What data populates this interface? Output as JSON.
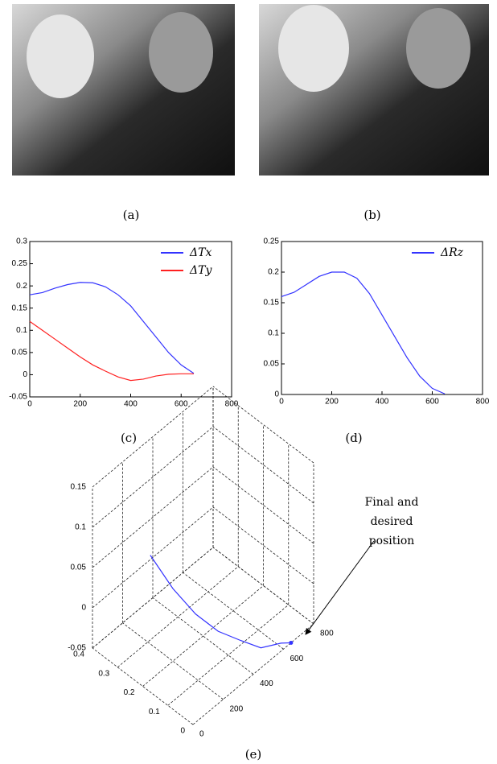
{
  "images": [
    {
      "caption": "(a)"
    },
    {
      "caption": "(b)"
    }
  ],
  "chart_data": [
    {
      "type": "line",
      "caption": "(c)",
      "x": [
        0,
        50,
        100,
        150,
        200,
        250,
        300,
        350,
        400,
        450,
        500,
        550,
        600,
        650
      ],
      "series": [
        {
          "name": "ΔTx",
          "color": "#3333ff",
          "values": [
            0.18,
            0.185,
            0.195,
            0.203,
            0.208,
            0.207,
            0.198,
            0.18,
            0.155,
            0.12,
            0.085,
            0.05,
            0.022,
            0.003
          ]
        },
        {
          "name": "ΔTy",
          "color": "#ff2020",
          "values": [
            0.12,
            0.1,
            0.08,
            0.06,
            0.04,
            0.022,
            0.008,
            -0.005,
            -0.013,
            -0.01,
            -0.003,
            0.001,
            0.002,
            0.002
          ]
        }
      ],
      "xlim": [
        0,
        800
      ],
      "xticks": [
        0,
        200,
        400,
        600,
        800
      ],
      "ylim": [
        -0.05,
        0.3
      ],
      "yticks": [
        -0.05,
        0,
        0.05,
        0.1,
        0.15,
        0.2,
        0.25,
        0.3
      ],
      "legend": "upper right"
    },
    {
      "type": "line",
      "caption": "(d)",
      "x": [
        0,
        50,
        100,
        150,
        200,
        250,
        300,
        350,
        400,
        450,
        500,
        550,
        600,
        650
      ],
      "series": [
        {
          "name": "ΔRz",
          "color": "#3333ff",
          "values": [
            0.16,
            0.167,
            0.18,
            0.193,
            0.2,
            0.2,
            0.19,
            0.165,
            0.13,
            0.095,
            0.06,
            0.03,
            0.01,
            0.001
          ]
        }
      ],
      "xlim": [
        0,
        800
      ],
      "xticks": [
        0,
        200,
        400,
        600,
        800
      ],
      "ylim": [
        0,
        0.25
      ],
      "yticks": [
        0,
        0.05,
        0.1,
        0.15,
        0.2,
        0.25
      ],
      "legend": "upper right"
    },
    {
      "type": "line3d",
      "caption": "(e)",
      "series": [
        {
          "color": "#3333ff",
          "x": [
            0,
            100,
            200,
            300,
            400,
            500,
            600,
            650
          ],
          "y": [
            0.17,
            0.14,
            0.11,
            0.08,
            0.05,
            0.03,
            0.01,
            0
          ],
          "values": [
            0.12,
            0.07,
            0.03,
            0,
            -0.02,
            -0.04,
            -0.045,
            -0.05
          ]
        }
      ],
      "xlim": [
        0,
        800
      ],
      "xticks": [
        0,
        200,
        400,
        600,
        800
      ],
      "ylim": [
        0,
        0.4
      ],
      "yticks": [
        0,
        0.1,
        0.2,
        0.3,
        0.4
      ],
      "zlim": [
        -0.05,
        0.15
      ],
      "zticks": [
        -0.05,
        0,
        0.05,
        0.1,
        0.15
      ],
      "annotation": "Final and desired position"
    }
  ]
}
